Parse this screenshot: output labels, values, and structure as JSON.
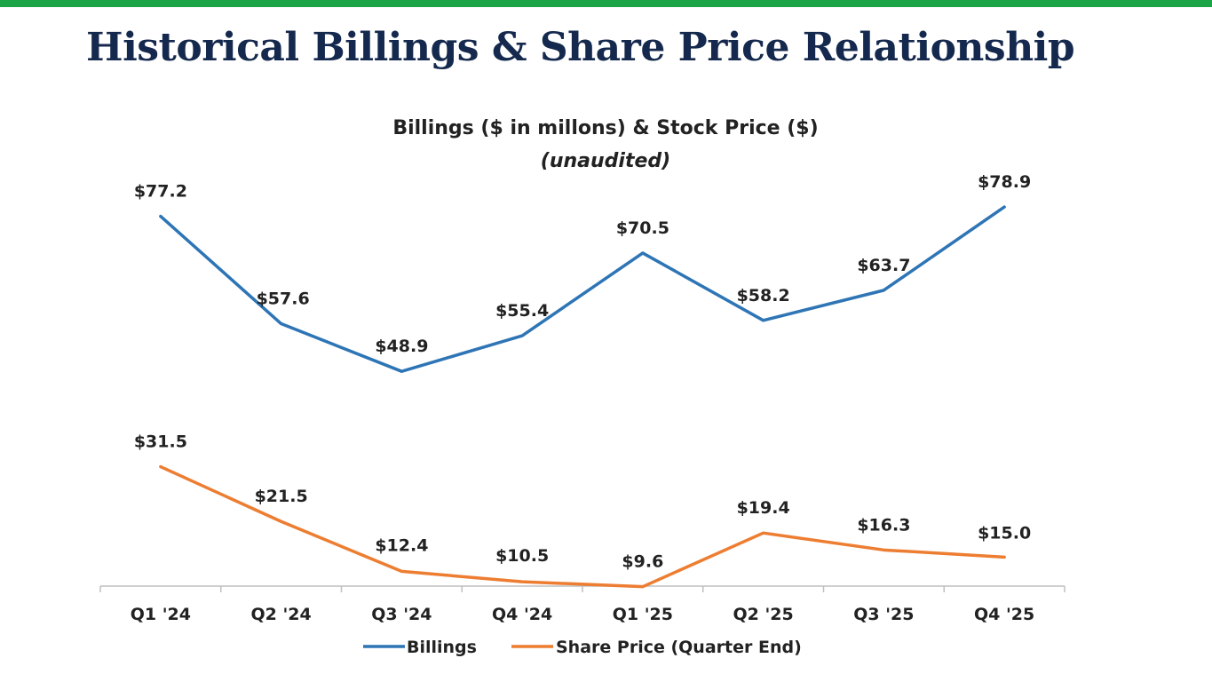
{
  "slide": {
    "title": "Historical Billings & Share Price Relationship",
    "accent_color": "#1aa446",
    "title_color": "#14294d"
  },
  "chart_data": {
    "type": "line",
    "title": "Billings ($ in millons) & Stock Price ($)",
    "subtitle": "(unaudited)",
    "categories": [
      "Q1 '24",
      "Q2 '24",
      "Q3 '24",
      "Q4 '24",
      "Q1 '25",
      "Q2 '25",
      "Q3 '25",
      "Q4 '25"
    ],
    "series": [
      {
        "name": "Billings",
        "color": "#2e75b6",
        "values": [
          77.2,
          57.6,
          48.9,
          55.4,
          70.5,
          58.2,
          63.7,
          78.9
        ],
        "labels": [
          "$77.2",
          "$57.6",
          "$48.9",
          "$55.4",
          "$70.5",
          "$58.2",
          "$63.7",
          "$78.9"
        ]
      },
      {
        "name": "Share Price (Quarter End)",
        "color": "#ed7d31",
        "values": [
          31.5,
          21.5,
          12.4,
          10.5,
          9.6,
          19.4,
          16.3,
          15.0
        ],
        "labels": [
          "$31.5",
          "$21.5",
          "$12.4",
          "$10.5",
          "$9.6",
          "$19.4",
          "$16.3",
          "$15.0"
        ]
      }
    ],
    "y_axis_visible": false,
    "grid": false,
    "legend_position": "bottom"
  }
}
